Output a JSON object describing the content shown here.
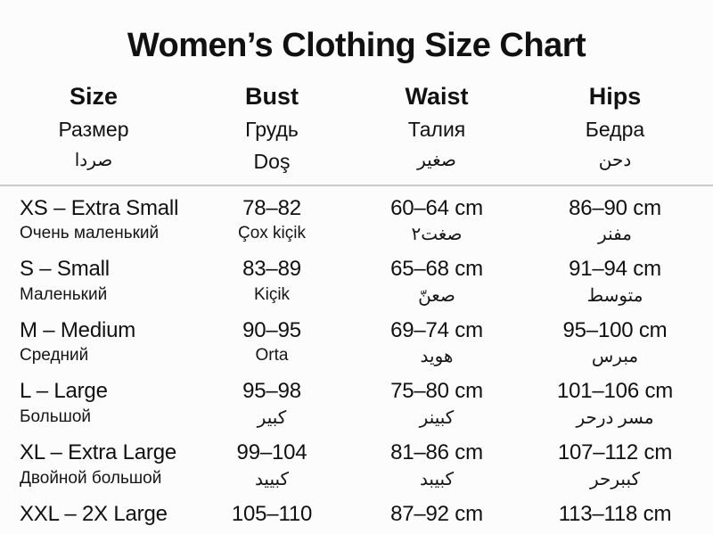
{
  "page": {
    "background_color": "#fcfcfc",
    "text_color": "#111111",
    "divider_color": "#c9c9c9"
  },
  "chart_data": {
    "type": "table",
    "title": "Women’s Clothing Size Chart",
    "legend_position": "none",
    "columns": [
      {
        "label": "Size",
        "sub_ru": "Размер",
        "sub_alt": "صردا"
      },
      {
        "label": "Bust",
        "sub_ru": "Грудь",
        "sub_alt": "Doş"
      },
      {
        "label": "Waist",
        "sub_ru": "Талия",
        "sub_alt": "صغير"
      },
      {
        "label": "Hips",
        "sub_ru": "Бедра",
        "sub_alt": "دحن"
      }
    ],
    "rows": [
      {
        "size": "XS – Extra Small",
        "size_sub": "Очень маленький",
        "bust": "78–82",
        "bust_sub": "Çox kiçik",
        "waist": "60–64 cm",
        "waist_sub": "صغت٢",
        "hips": "86–90 cm",
        "hips_sub": "مفنر"
      },
      {
        "size": "S – Small",
        "size_sub": "Маленький",
        "bust": "83–89",
        "bust_sub": "Kiçik",
        "waist": "65–68 cm",
        "waist_sub": "صعنّ",
        "hips": "91–94 cm",
        "hips_sub": "متوسط"
      },
      {
        "size": "M – Medium",
        "size_sub": "Средний",
        "bust": "90–95",
        "bust_sub": "Orta",
        "waist": "69–74 cm",
        "waist_sub": "هويد",
        "hips": "95–100 cm",
        "hips_sub": "مبرس"
      },
      {
        "size": "L – Large",
        "size_sub": "Большой",
        "bust": "95–98",
        "bust_sub": "كبير",
        "waist": "75–80 cm",
        "waist_sub": "كبينر",
        "hips": "101–106 cm",
        "hips_sub": "مسر درحر"
      },
      {
        "size": "XL – Extra Large",
        "size_sub": "Двойной большой",
        "bust": "99–104",
        "bust_sub": "كبييد",
        "waist": "81–86 cm",
        "waist_sub": "كبيبد",
        "hips": "107–112 cm",
        "hips_sub": "كببرحر"
      },
      {
        "size": "XXL – 2X Large",
        "size_sub": "",
        "bust": "105–110",
        "bust_sub": "",
        "waist": "87–92 cm",
        "waist_sub": "",
        "hips": "113–118 cm",
        "hips_sub": ""
      }
    ]
  }
}
